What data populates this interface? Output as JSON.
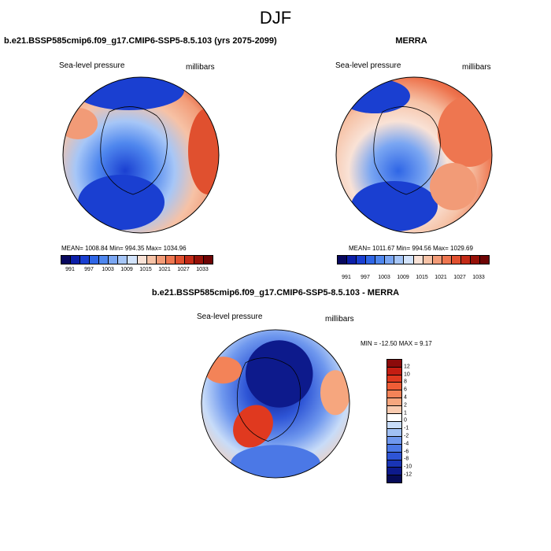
{
  "figure": {
    "title": "DJF"
  },
  "panels": [
    {
      "title": "b.e21.BSSP585cmip6.f09_g17.CMIP6-SSP5-8.5.103 (yrs 2075-2099)",
      "field_label": "Sea-level pressure",
      "units_label": "millibars",
      "stats": "MEAN= 1008.84  Min= 994.35  Max= 1034.96",
      "colorbar_ticks": [
        "991",
        "997",
        "1003",
        "1009",
        "1015",
        "1021",
        "1027",
        "1033"
      ]
    },
    {
      "title": "MERRA",
      "field_label": "Sea-level pressure",
      "units_label": "millibars",
      "stats": "MEAN= 1011.67  Min= 994.56  Max= 1029.69",
      "colorbar_ticks": [
        "991",
        "997",
        "1003",
        "1009",
        "1015",
        "1021",
        "1027",
        "1033"
      ]
    },
    {
      "title": "b.e21.BSSP585cmip6.f09_g17.CMIP6-SSP5-8.5.103 - MERRA",
      "field_label": "Sea-level pressure",
      "units_label": "millibars",
      "stats": "MIN = -12.50 MAX =   9.17",
      "colorbar_ticks": [
        "12",
        "10",
        "8",
        "6",
        "4",
        "2",
        "1",
        "0",
        "-1",
        "-2",
        "-4",
        "-6",
        "-8",
        "-10",
        "-12"
      ]
    }
  ],
  "colors": {
    "slp_scale": [
      "#08085e",
      "#0c1fa8",
      "#1a3fd1",
      "#2f66e6",
      "#4f87ee",
      "#7aa6f2",
      "#a6c6f7",
      "#d2e3fb",
      "#f9e2d6",
      "#f6c2a6",
      "#f29b77",
      "#ee7650",
      "#e0502f",
      "#c32a17",
      "#961108",
      "#6e0404"
    ],
    "diff_scale": [
      "#8c0a0a",
      "#c51d12",
      "#e0391f",
      "#ef5d36",
      "#f38358",
      "#f6a67e",
      "#f9cbb0",
      "#ffffff",
      "#c8dcf8",
      "#a0c0f4",
      "#6f98ee",
      "#4b78e6",
      "#2e55d6",
      "#1934b5",
      "#0d1a8c",
      "#060b58"
    ]
  }
}
